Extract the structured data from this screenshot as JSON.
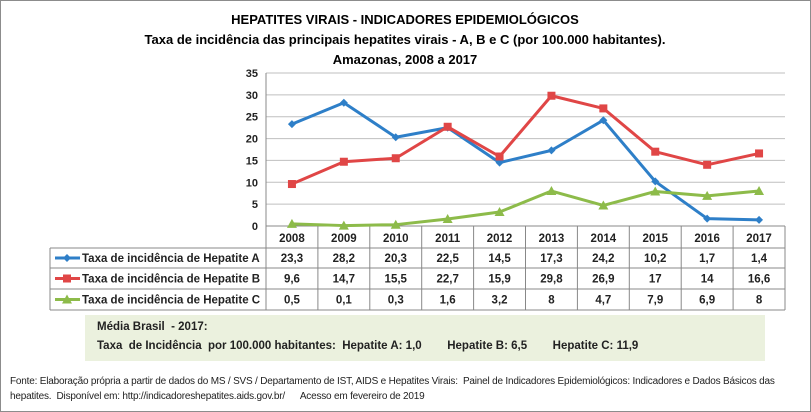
{
  "chart_data": {
    "type": "line",
    "title": "HEPATITES VIRAIS - INDICADORES EPIDEMIOLÓGICOS",
    "subtitle": "Taxa de incidência das principais hepatites virais - A, B e C (por 100.000 habitantes).",
    "subtitle2": "Amazonas, 2008 a 2017",
    "categories": [
      "2008",
      "2009",
      "2010",
      "2011",
      "2012",
      "2013",
      "2014",
      "2015",
      "2016",
      "2017"
    ],
    "ylim": [
      0,
      35
    ],
    "yticks": [
      0,
      5,
      10,
      15,
      20,
      25,
      30,
      35
    ],
    "grid": true,
    "legend": "data-table",
    "series": [
      {
        "name": "Taxa de incidência de Hepatite A",
        "color": "#2e7fc8",
        "marker": "diamond",
        "values": [
          23.3,
          28.2,
          20.3,
          22.5,
          14.5,
          17.3,
          24.2,
          10.2,
          1.7,
          1.4
        ],
        "labels": [
          "23,3",
          "28,2",
          "20,3",
          "22,5",
          "14,5",
          "17,3",
          "24,2",
          "10,2",
          "1,7",
          "1,4"
        ]
      },
      {
        "name": "Taxa de incidência de Hepatite B",
        "color": "#e04646",
        "marker": "square",
        "values": [
          9.6,
          14.7,
          15.5,
          22.7,
          15.9,
          29.8,
          26.9,
          17,
          14,
          16.6
        ],
        "labels": [
          "9,6",
          "14,7",
          "15,5",
          "22,7",
          "15,9",
          "29,8",
          "26,9",
          "17",
          "14",
          "16,6"
        ]
      },
      {
        "name": "Taxa de incidência de Hepatite C",
        "color": "#8dbb4a",
        "marker": "triangle",
        "values": [
          0.5,
          0.1,
          0.3,
          1.6,
          3.2,
          8,
          4.7,
          7.9,
          6.9,
          8
        ],
        "labels": [
          "0,5",
          "0,1",
          "0,3",
          "1,6",
          "3,2",
          "8",
          "4,7",
          "7,9",
          "6,9",
          "8"
        ]
      }
    ]
  },
  "note": {
    "line1": "Média Brasil  - 2017:",
    "line2": "Taxa  de Incidência  por 100.000 habitantes:  Hepatite A: 1,0        Hepatite B: 6,5        Hepatite C: 11,9"
  },
  "footer": {
    "line1": "Fonte: Elaboração própria a partir de dados do MS / SVS / Departamento de IST, AIDS e Hepatites Virais:  Painel de Indicadores Epidemiológicos: Indicadores e Dados Básicos das",
    "line2": "hepatites.  Disponível em: http://indicadoreshepatites.aids.gov.br/      Acesso em fevereiro de 2019"
  }
}
